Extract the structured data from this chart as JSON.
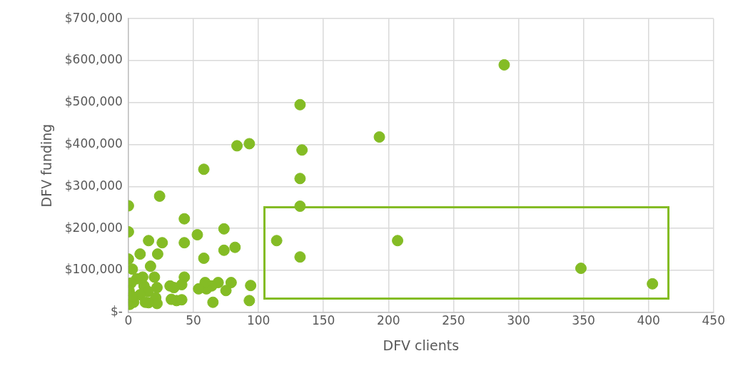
{
  "chart_data": {
    "type": "scatter",
    "xlabel": "DFV clients",
    "ylabel": "DFV funding",
    "x": [
      289,
      193,
      132,
      133.5,
      132,
      132,
      132,
      114,
      207,
      348,
      403,
      83.5,
      93,
      58,
      24,
      0,
      43,
      0,
      15.5,
      26,
      43,
      53,
      73.5,
      73.5,
      82,
      58,
      22.5,
      9,
      0,
      17,
      3,
      94,
      93,
      79,
      75,
      69,
      64,
      60,
      59,
      65,
      54,
      43,
      41,
      37,
      41,
      33,
      32,
      35,
      22,
      21,
      20,
      22,
      15.5,
      12,
      11,
      6.5,
      2,
      0.5,
      0,
      1,
      4,
      15,
      9,
      3,
      13
    ],
    "series": [
      {
        "color": "#84bc25",
        "values": [
          590000,
          418000,
          495000,
          387000,
          319000,
          253000,
          132000,
          171000,
          171000,
          105000,
          68000,
          397000,
          402000,
          341000,
          277000,
          254000,
          223000,
          192000,
          171000,
          166000,
          166000,
          185000,
          199000,
          148000,
          155000,
          129000,
          139000,
          139000,
          127000,
          110000,
          103000,
          64000,
          28000,
          71000,
          52000,
          71000,
          63000,
          56000,
          71000,
          24000,
          56000,
          84000,
          66000,
          28000,
          30000,
          31000,
          63000,
          59000,
          59000,
          35000,
          84000,
          21000,
          23000,
          63000,
          84000,
          80000,
          70000,
          52000,
          28000,
          19000,
          24000,
          50000,
          42000,
          38000,
          24000
        ]
      }
    ],
    "xlim": [
      0,
      450
    ],
    "xticks": [
      0,
      50,
      100,
      150,
      200,
      250,
      300,
      350,
      400,
      450
    ],
    "ylim": [
      0,
      700000
    ],
    "yticks": [
      {
        "value": 0,
        "label": "$-"
      },
      {
        "value": 100000,
        "label": "$100,000"
      },
      {
        "value": 200000,
        "label": "$200,000"
      },
      {
        "value": 300000,
        "label": "$300,000"
      },
      {
        "value": 400000,
        "label": "$400,000"
      },
      {
        "value": 500000,
        "label": "$500,000"
      },
      {
        "value": 600000,
        "label": "$600,000"
      },
      {
        "value": 700000,
        "label": "$700,000"
      }
    ],
    "grid": true,
    "marker": "circle"
  }
}
